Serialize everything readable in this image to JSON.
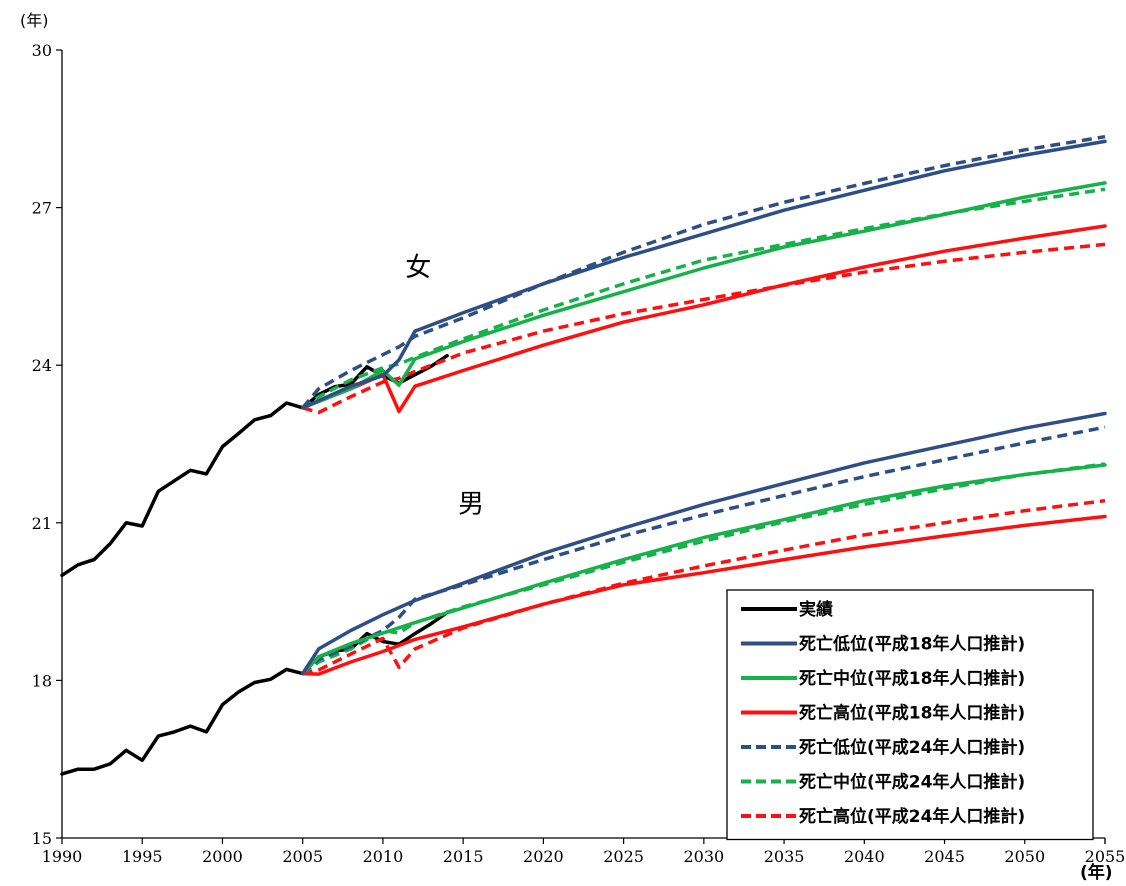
{
  "chart_data": {
    "type": "line",
    "y_unit": "(年)",
    "x_unit": "(年)",
    "xlim": [
      1990,
      2055
    ],
    "ylim": [
      15,
      30
    ],
    "x_ticks": [
      1990,
      1995,
      2000,
      2005,
      2010,
      2015,
      2020,
      2025,
      2030,
      2035,
      2040,
      2045,
      2050,
      2055
    ],
    "y_ticks": [
      15,
      18,
      21,
      24,
      27,
      30
    ],
    "grid": false,
    "legend_position": "bottom-right",
    "annotations": [
      {
        "text": "女",
        "x": 2012.2,
        "y": 25.7
      },
      {
        "text": "男",
        "x": 2015.5,
        "y": 21.2
      }
    ],
    "series_styles": [
      {
        "name": "実績",
        "color": "#000000",
        "dash": "solid"
      },
      {
        "name": "死亡低位(平成18年人口推計)",
        "color": "#2e4f86",
        "dash": "solid"
      },
      {
        "name": "死亡中位(平成18年人口推計)",
        "color": "#17b14a",
        "dash": "solid"
      },
      {
        "name": "死亡高位(平成18年人口推計)",
        "color": "#ff0f0f",
        "dash": "solid"
      },
      {
        "name": "死亡低位(平成24年人口推計)",
        "color": "#2e4f86",
        "dash": "dashed"
      },
      {
        "name": "死亡中位(平成24年人口推計)",
        "color": "#17b14a",
        "dash": "dashed"
      },
      {
        "name": "死亡高位(平成24年人口推計)",
        "color": "#ff0f0f",
        "dash": "dashed"
      }
    ],
    "series": [
      {
        "style": 0,
        "group": "女",
        "x": [
          1990,
          1991,
          1992,
          1993,
          1994,
          1995,
          1996,
          1997,
          1998,
          1999,
          2000,
          2001,
          2002,
          2003,
          2004,
          2005,
          2006,
          2007,
          2008,
          2009,
          2010,
          2011,
          2012,
          2013,
          2014
        ],
        "values": [
          20.0,
          20.2,
          20.3,
          20.6,
          21.0,
          20.94,
          21.6,
          21.8,
          22.0,
          21.93,
          22.45,
          22.7,
          22.96,
          23.04,
          23.28,
          23.19,
          23.44,
          23.59,
          23.64,
          23.97,
          23.8,
          23.66,
          23.82,
          23.98,
          24.18
        ]
      },
      {
        "style": 0,
        "group": "男",
        "x": [
          1990,
          1991,
          1992,
          1993,
          1994,
          1995,
          1996,
          1997,
          1998,
          1999,
          2000,
          2001,
          2002,
          2003,
          2004,
          2005,
          2006,
          2007,
          2008,
          2009,
          2010,
          2011,
          2012,
          2013,
          2014
        ],
        "values": [
          16.22,
          16.31,
          16.31,
          16.41,
          16.67,
          16.48,
          16.94,
          17.02,
          17.13,
          17.02,
          17.54,
          17.78,
          17.96,
          18.02,
          18.21,
          18.13,
          18.45,
          18.56,
          18.6,
          18.89,
          18.74,
          18.69,
          18.89,
          19.08,
          19.29
        ]
      },
      {
        "style": 1,
        "group": "女",
        "x": [
          2005,
          2008,
          2010,
          2011,
          2012,
          2015,
          2020,
          2025,
          2030,
          2035,
          2040,
          2045,
          2050,
          2055
        ],
        "values": [
          23.19,
          23.6,
          23.8,
          24.1,
          24.65,
          25.0,
          25.55,
          26.05,
          26.5,
          26.95,
          27.33,
          27.7,
          28.0,
          28.26
        ]
      },
      {
        "style": 2,
        "group": "女",
        "x": [
          2005,
          2008,
          2010,
          2011,
          2012,
          2015,
          2020,
          2025,
          2030,
          2035,
          2040,
          2045,
          2050,
          2055
        ],
        "values": [
          23.19,
          23.55,
          23.9,
          23.62,
          24.12,
          24.45,
          24.95,
          25.4,
          25.85,
          26.25,
          26.55,
          26.87,
          27.2,
          27.47
        ]
      },
      {
        "style": 3,
        "group": "女",
        "x": [
          2005,
          2008,
          2010,
          2011,
          2012,
          2015,
          2020,
          2025,
          2030,
          2035,
          2040,
          2045,
          2050,
          2055
        ],
        "values": [
          23.19,
          23.55,
          23.82,
          23.12,
          23.6,
          23.9,
          24.38,
          24.82,
          25.15,
          25.53,
          25.87,
          26.17,
          26.42,
          26.65
        ]
      },
      {
        "style": 4,
        "group": "女",
        "x": [
          2005,
          2006,
          2008,
          2010,
          2011,
          2012,
          2015,
          2020,
          2025,
          2030,
          2035,
          2040,
          2045,
          2050,
          2055
        ],
        "values": [
          23.19,
          23.55,
          23.9,
          24.2,
          24.35,
          24.55,
          24.9,
          25.55,
          26.15,
          26.68,
          27.1,
          27.46,
          27.8,
          28.1,
          28.35
        ]
      },
      {
        "style": 5,
        "group": "女",
        "x": [
          2005,
          2006,
          2008,
          2010,
          2011,
          2012,
          2015,
          2020,
          2025,
          2030,
          2035,
          2040,
          2045,
          2050,
          2055
        ],
        "values": [
          23.19,
          23.4,
          23.72,
          23.95,
          24.02,
          24.15,
          24.5,
          25.05,
          25.55,
          26.0,
          26.3,
          26.6,
          26.88,
          27.12,
          27.35
        ]
      },
      {
        "style": 6,
        "group": "女",
        "x": [
          2005,
          2006,
          2008,
          2010,
          2011,
          2012,
          2015,
          2020,
          2025,
          2030,
          2035,
          2040,
          2045,
          2050,
          2055
        ],
        "values": [
          23.19,
          23.1,
          23.4,
          23.68,
          23.75,
          23.88,
          24.23,
          24.65,
          24.98,
          25.25,
          25.52,
          25.77,
          25.98,
          26.15,
          26.3
        ]
      },
      {
        "style": 1,
        "group": "男",
        "x": [
          2005,
          2006,
          2008,
          2010,
          2012,
          2015,
          2020,
          2025,
          2030,
          2035,
          2040,
          2045,
          2050,
          2055
        ],
        "values": [
          18.13,
          18.6,
          18.95,
          19.25,
          19.52,
          19.85,
          20.42,
          20.9,
          21.35,
          21.75,
          22.14,
          22.47,
          22.8,
          23.08
        ]
      },
      {
        "style": 2,
        "group": "男",
        "x": [
          2005,
          2006,
          2008,
          2010,
          2012,
          2015,
          2020,
          2025,
          2030,
          2035,
          2040,
          2045,
          2050,
          2055
        ],
        "values": [
          18.13,
          18.45,
          18.7,
          18.9,
          19.1,
          19.38,
          19.85,
          20.3,
          20.72,
          21.06,
          21.42,
          21.7,
          21.92,
          22.1
        ]
      },
      {
        "style": 3,
        "group": "男",
        "x": [
          2005,
          2006,
          2008,
          2010,
          2012,
          2015,
          2020,
          2025,
          2030,
          2035,
          2040,
          2045,
          2050,
          2055
        ],
        "values": [
          18.13,
          18.12,
          18.35,
          18.55,
          18.78,
          19.02,
          19.45,
          19.82,
          20.05,
          20.3,
          20.54,
          20.75,
          20.95,
          21.12
        ]
      },
      {
        "style": 4,
        "group": "男",
        "x": [
          2005,
          2006,
          2008,
          2010,
          2011,
          2012,
          2015,
          2020,
          2025,
          2030,
          2035,
          2040,
          2045,
          2050,
          2055
        ],
        "values": [
          18.13,
          18.4,
          18.65,
          18.95,
          19.2,
          19.55,
          19.82,
          20.3,
          20.75,
          21.15,
          21.52,
          21.88,
          22.2,
          22.52,
          22.82
        ]
      },
      {
        "style": 5,
        "group": "男",
        "x": [
          2005,
          2006,
          2008,
          2010,
          2011,
          2012,
          2015,
          2020,
          2025,
          2030,
          2035,
          2040,
          2045,
          2050,
          2055
        ],
        "values": [
          18.13,
          18.35,
          18.6,
          18.95,
          18.9,
          19.1,
          19.4,
          19.82,
          20.25,
          20.65,
          21.02,
          21.35,
          21.65,
          21.92,
          22.12
        ]
      },
      {
        "style": 6,
        "group": "男",
        "x": [
          2005,
          2006,
          2008,
          2010,
          2011,
          2012,
          2015,
          2020,
          2025,
          2030,
          2035,
          2040,
          2045,
          2050,
          2055
        ],
        "values": [
          18.13,
          18.2,
          18.5,
          18.8,
          18.25,
          18.6,
          19.0,
          19.45,
          19.85,
          20.18,
          20.48,
          20.77,
          21.0,
          21.23,
          21.42
        ]
      }
    ]
  }
}
